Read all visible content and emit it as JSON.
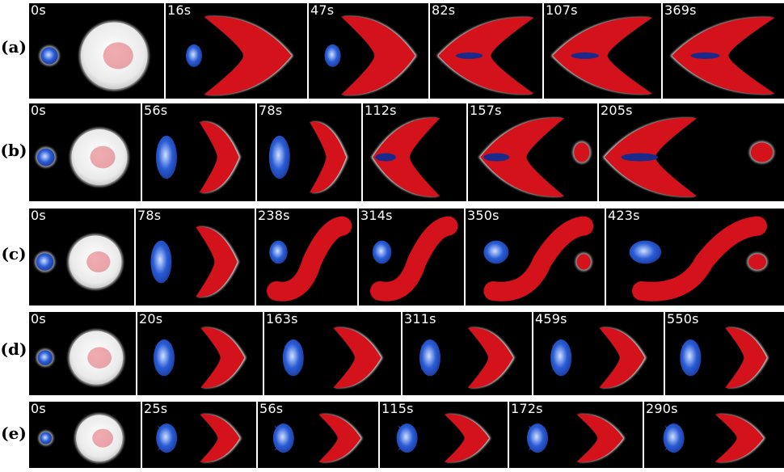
{
  "rows": [
    {
      "label": "(a)",
      "times": [
        "0s",
        "16s",
        "47s",
        "82s",
        "107s",
        "369s"
      ]
    },
    {
      "label": "(b)",
      "times": [
        "0s",
        "56s",
        "78s",
        "112s",
        "157s",
        "205s"
      ]
    },
    {
      "label": "(c)",
      "times": [
        "0s",
        "78s",
        "238s",
        "314s",
        "350s",
        "423s"
      ]
    },
    {
      "label": "(d)",
      "times": [
        "0s",
        "20s",
        "163s",
        "311s",
        "459s",
        "550s"
      ]
    },
    {
      "label": "(e)",
      "times": [
        "0s",
        "25s",
        "56s",
        "115s",
        "172s",
        "290s"
      ]
    }
  ],
  "colors": {
    "background": "#000000",
    "red": "#d4121c",
    "blue": "#2a5cd6",
    "white": "#f4f4f4"
  }
}
